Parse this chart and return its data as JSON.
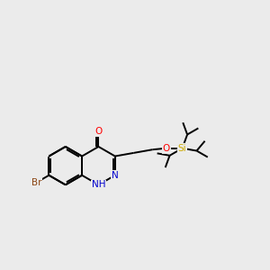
{
  "background_color": "#ebebeb",
  "bond_color": "#000000",
  "atom_colors": {
    "O": "#ff0000",
    "N": "#0000cd",
    "Br": "#8b4513",
    "Si": "#ccaa00",
    "C": "#000000"
  },
  "figsize": [
    3.0,
    3.0
  ],
  "dpi": 100,
  "bond_lw": 1.4,
  "font_size": 7.5
}
